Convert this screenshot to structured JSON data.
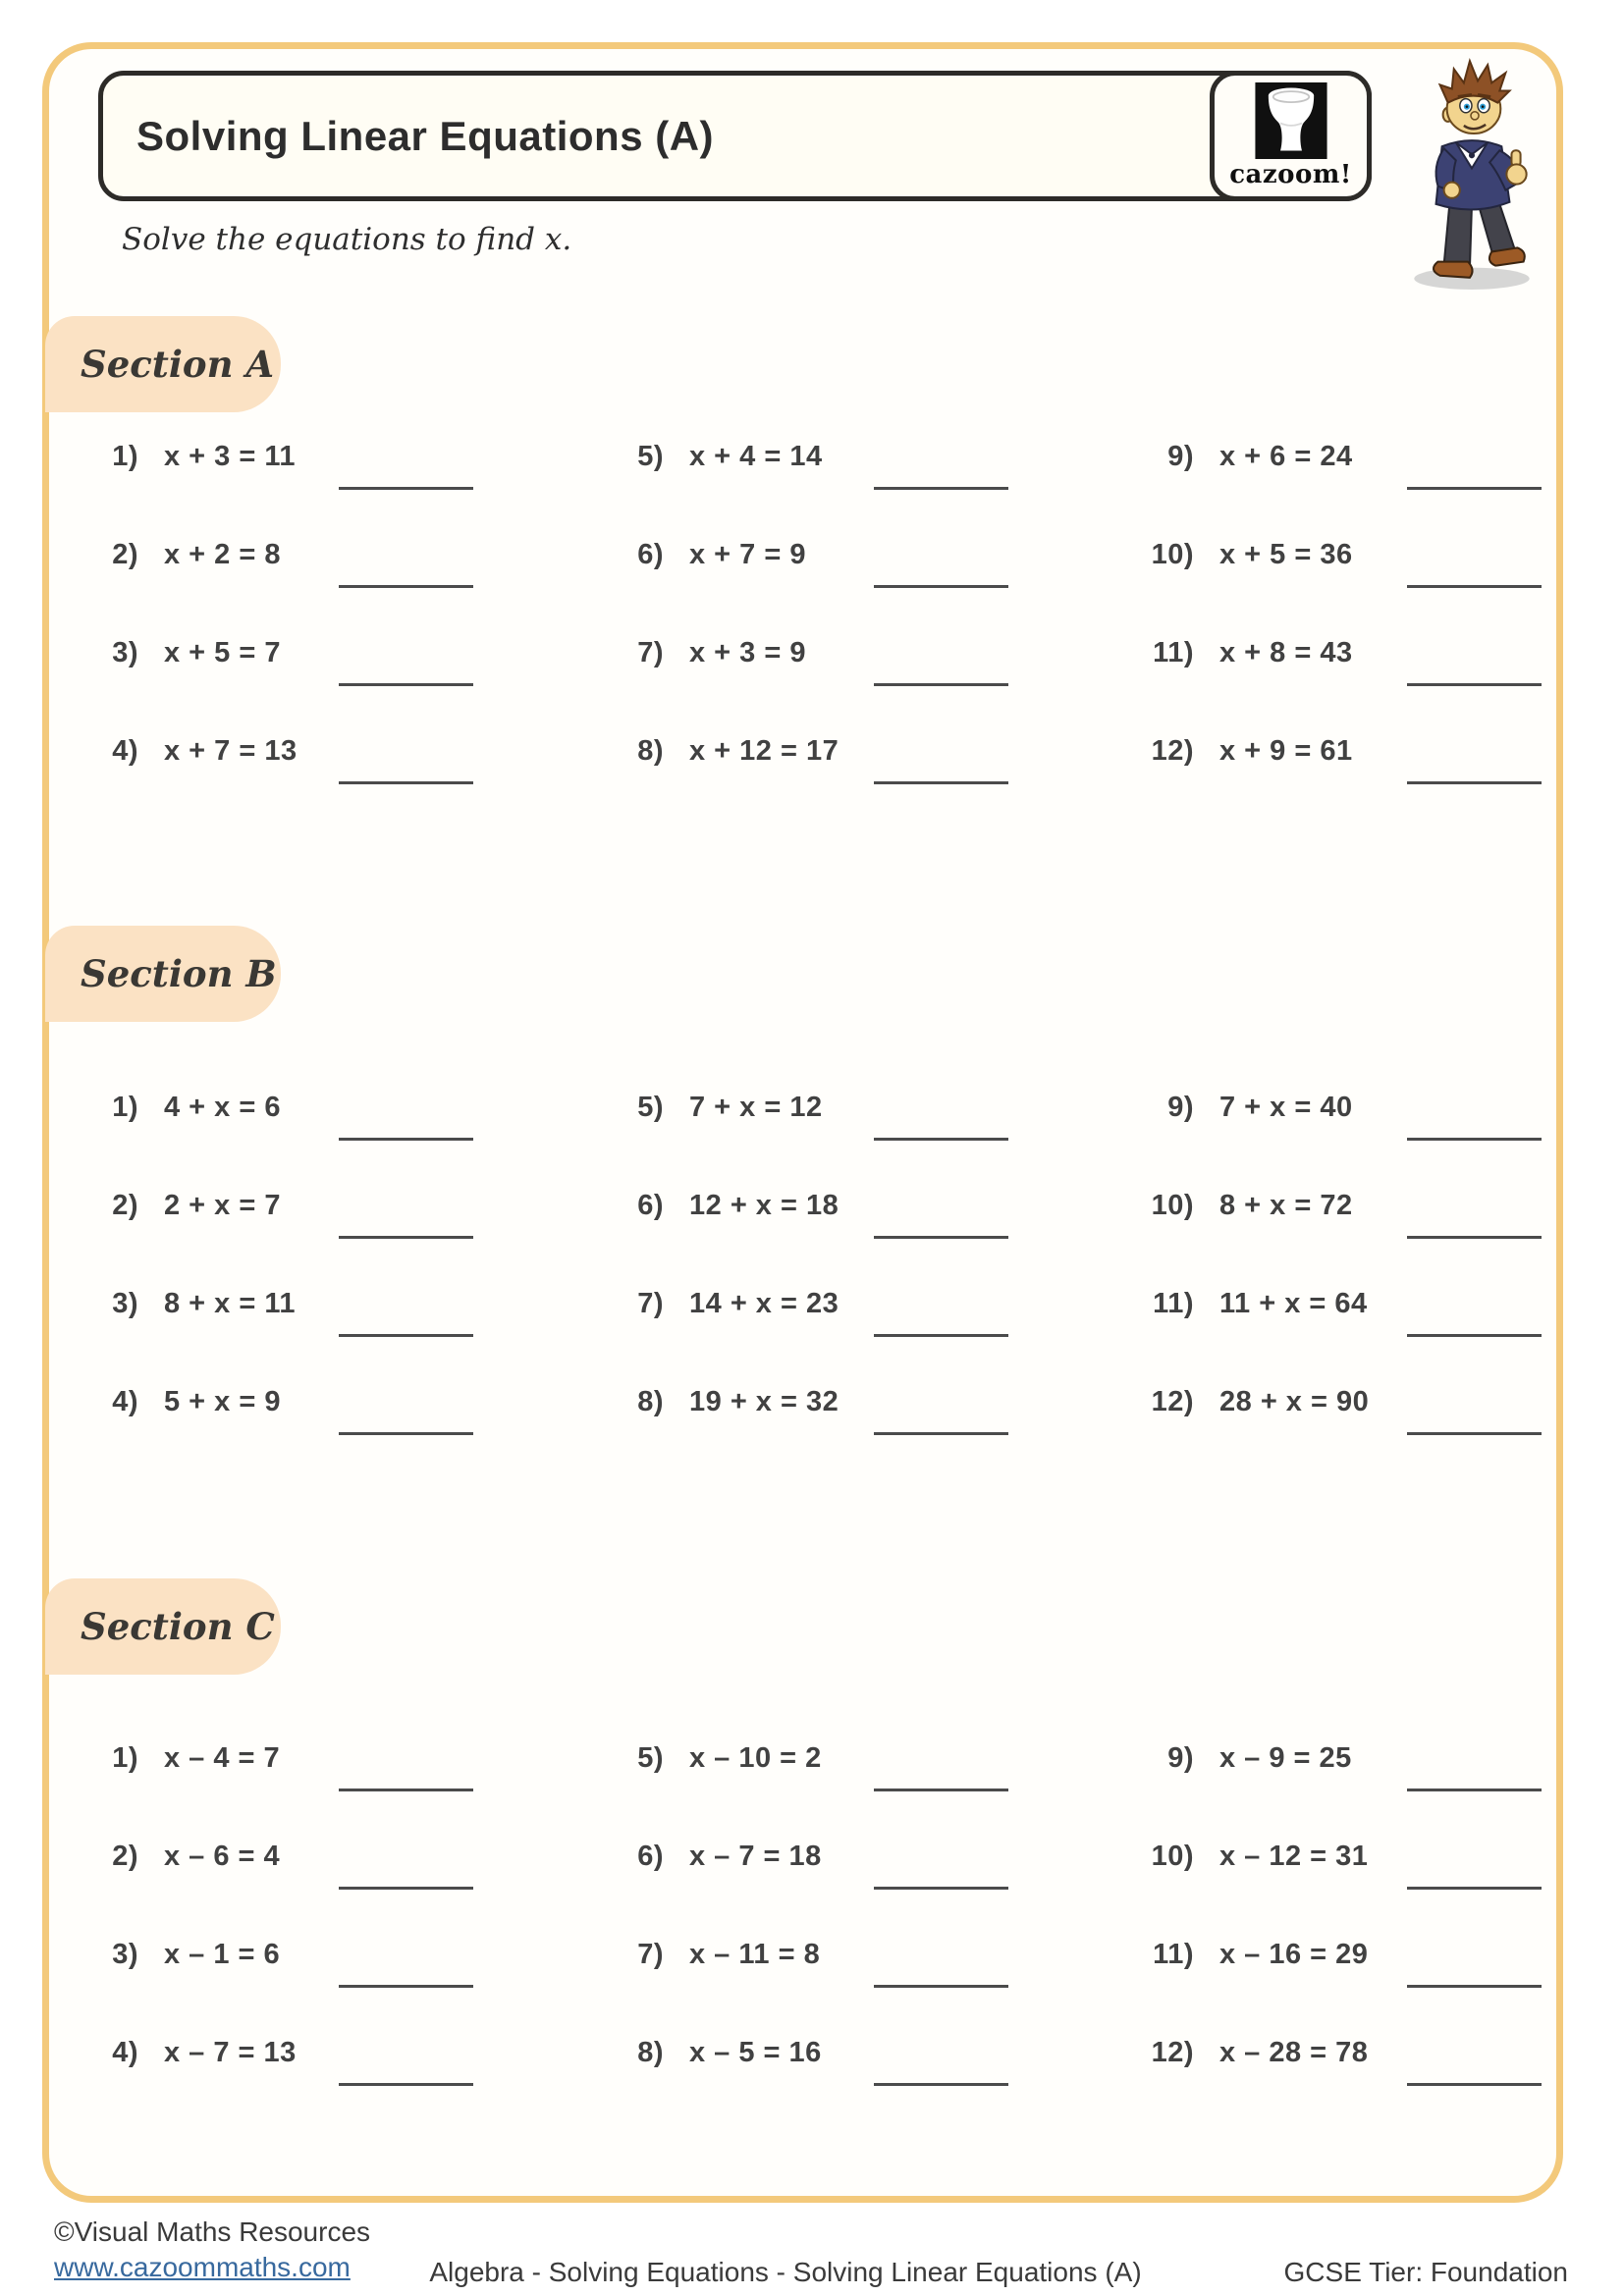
{
  "colors": {
    "frame_yellow": "#f3c97b",
    "section_tab_peach": "#fbe2c4",
    "link_blue": "#38699e",
    "ink": "#3b3b3b"
  },
  "header": {
    "title": "Solving Linear Equations (A)",
    "logo_text": "cazoom!"
  },
  "instruction": "Solve the equations to find x.",
  "sections": [
    {
      "label": "Section A",
      "problems": [
        {
          "num": "1)",
          "eq": "x + 3 = 11"
        },
        {
          "num": "2)",
          "eq": "x + 2 = 8"
        },
        {
          "num": "3)",
          "eq": "x + 5 = 7"
        },
        {
          "num": "4)",
          "eq": "x + 7 = 13"
        },
        {
          "num": "5)",
          "eq": "x + 4 = 14"
        },
        {
          "num": "6)",
          "eq": "x + 7 = 9"
        },
        {
          "num": "7)",
          "eq": "x + 3 = 9"
        },
        {
          "num": "8)",
          "eq": "x + 12 = 17"
        },
        {
          "num": "9)",
          "eq": "x + 6 = 24"
        },
        {
          "num": "10)",
          "eq": "x + 5 = 36"
        },
        {
          "num": "11)",
          "eq": "x + 8 = 43"
        },
        {
          "num": "12)",
          "eq": "x + 9 = 61"
        }
      ]
    },
    {
      "label": "Section B",
      "problems": [
        {
          "num": "1)",
          "eq": "4 + x = 6"
        },
        {
          "num": "2)",
          "eq": "2 + x = 7"
        },
        {
          "num": "3)",
          "eq": "8 + x = 11"
        },
        {
          "num": "4)",
          "eq": "5 + x = 9"
        },
        {
          "num": "5)",
          "eq": "7 + x = 12"
        },
        {
          "num": "6)",
          "eq": "12 + x = 18"
        },
        {
          "num": "7)",
          "eq": "14 + x = 23"
        },
        {
          "num": "8)",
          "eq": "19 + x = 32"
        },
        {
          "num": "9)",
          "eq": "7 + x = 40"
        },
        {
          "num": "10)",
          "eq": "8 + x = 72"
        },
        {
          "num": "11)",
          "eq": "11 + x = 64"
        },
        {
          "num": "12)",
          "eq": "28 + x = 90"
        }
      ]
    },
    {
      "label": "Section C",
      "problems": [
        {
          "num": "1)",
          "eq": "x – 4 = 7"
        },
        {
          "num": "2)",
          "eq": "x – 6 = 4"
        },
        {
          "num": "3)",
          "eq": "x – 1 = 6"
        },
        {
          "num": "4)",
          "eq": "x – 7 = 13"
        },
        {
          "num": "5)",
          "eq": "x – 10 = 2"
        },
        {
          "num": "6)",
          "eq": "x – 7 = 18"
        },
        {
          "num": "7)",
          "eq": "x – 11 = 8"
        },
        {
          "num": "8)",
          "eq": "x – 5 = 16"
        },
        {
          "num": "9)",
          "eq": "x – 9 = 25"
        },
        {
          "num": "10)",
          "eq": "x – 12 = 31"
        },
        {
          "num": "11)",
          "eq": "x – 16 = 29"
        },
        {
          "num": "12)",
          "eq": "x – 28 = 78"
        }
      ]
    }
  ],
  "footer": {
    "copyright": "©Visual Maths Resources",
    "website": "www.cazoommaths.com",
    "breadcrumb": "Algebra - Solving Equations - Solving Linear Equations (A)",
    "tier": "GCSE Tier: Foundation"
  }
}
